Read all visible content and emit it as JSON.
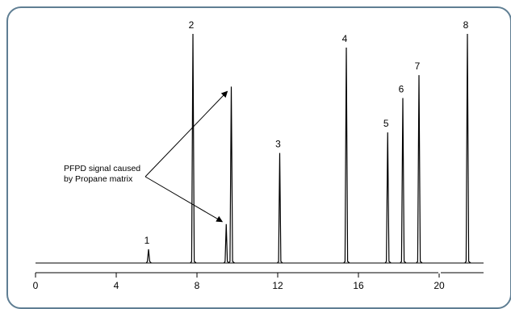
{
  "chart_data": {
    "type": "line",
    "title": "",
    "xlabel": "",
    "ylabel": "",
    "x_ticks": [
      0,
      4,
      8,
      12,
      16,
      20
    ],
    "x_tick_labels": [
      "0",
      "4",
      "8",
      "12",
      "16",
      "20"
    ],
    "xlim": [
      0,
      22
    ],
    "ylim": [
      0,
      1
    ],
    "grid": false,
    "baseline": 0.0,
    "peaks": [
      {
        "label": "1",
        "x": 5.6,
        "height": 0.06
      },
      {
        "label": "2",
        "x": 7.8,
        "height": 1.0
      },
      {
        "label": "",
        "x": 9.45,
        "height": 0.17
      },
      {
        "label": "",
        "x": 9.7,
        "height": 0.77
      },
      {
        "label": "3",
        "x": 12.1,
        "height": 0.48
      },
      {
        "label": "4",
        "x": 15.4,
        "height": 0.94
      },
      {
        "label": "5",
        "x": 17.45,
        "height": 0.57
      },
      {
        "label": "6",
        "x": 18.2,
        "height": 0.72
      },
      {
        "label": "7",
        "x": 19.0,
        "height": 0.82
      },
      {
        "label": "8",
        "x": 21.4,
        "height": 1.0
      }
    ],
    "annotation": {
      "lines": [
        "PFPD signal caused",
        "by Propane matrix"
      ],
      "arrow_targets": [
        {
          "x": 9.7,
          "y": 0.77
        },
        {
          "x": 9.45,
          "y": 0.17
        }
      ]
    }
  }
}
